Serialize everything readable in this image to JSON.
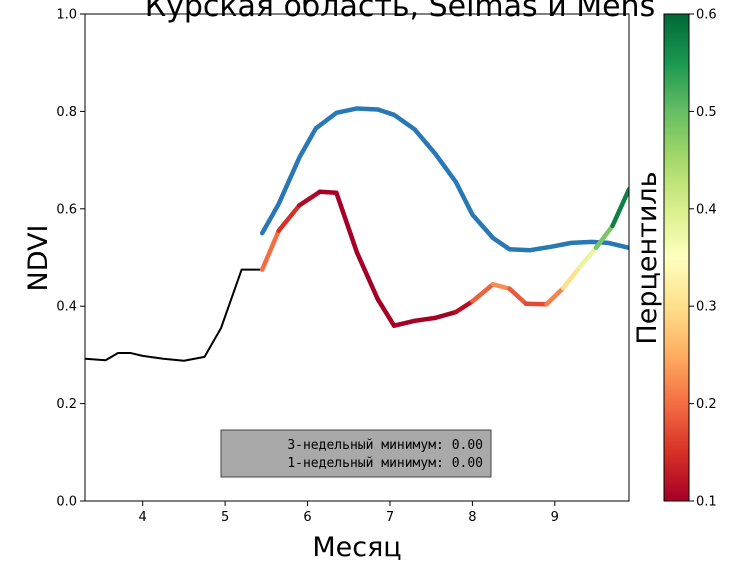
{
  "chart_data": {
    "type": "line",
    "title": "Курская область, Seimas и Mens",
    "xlabel": "Месяц",
    "ylabel": "NDVI",
    "xlim": [
      3.3,
      9.9
    ],
    "ylim": [
      0.0,
      1.0
    ],
    "xticks": [
      "4",
      "5",
      "6",
      "7",
      "8",
      "9"
    ],
    "yticks": [
      "0.0",
      "0.2",
      "0.4",
      "0.6",
      "0.8",
      "1.0"
    ],
    "grid": false,
    "series": [
      {
        "style": "history",
        "color": "#000000",
        "x": [
          3.3,
          3.55,
          3.7,
          3.85,
          4.0,
          4.25,
          4.5,
          4.75,
          4.95,
          5.2,
          5.45
        ],
        "y": [
          0.292,
          0.289,
          0.304,
          0.304,
          0.298,
          0.292,
          0.288,
          0.296,
          0.355,
          0.475,
          0.475
        ]
      },
      {
        "style": "baseline",
        "color": "#2878b5",
        "x": [
          5.45,
          5.65,
          5.9,
          6.1,
          6.35,
          6.6,
          6.85,
          7.05,
          7.3,
          7.55,
          7.8,
          8.0,
          8.25,
          8.45,
          8.7,
          8.95,
          9.2,
          9.45,
          9.65,
          9.9
        ],
        "y": [
          0.55,
          0.61,
          0.705,
          0.765,
          0.797,
          0.806,
          0.804,
          0.793,
          0.763,
          0.713,
          0.655,
          0.588,
          0.54,
          0.517,
          0.515,
          0.522,
          0.53,
          0.532,
          0.53,
          0.52
        ]
      },
      {
        "style": "current",
        "colored_by": "percentile",
        "x": [
          5.45,
          5.65,
          5.9,
          6.15,
          6.35,
          6.6,
          6.85,
          7.05,
          7.3,
          7.55,
          7.8,
          8.0,
          8.25,
          8.45,
          8.65,
          8.9,
          9.1,
          9.3,
          9.5,
          9.7,
          9.9
        ],
        "y": [
          0.475,
          0.555,
          0.607,
          0.635,
          0.633,
          0.51,
          0.415,
          0.36,
          0.37,
          0.376,
          0.388,
          0.41,
          0.445,
          0.436,
          0.405,
          0.404,
          0.437,
          0.48,
          0.52,
          0.565,
          0.64
        ],
        "percentile": [
          0.22,
          0.18,
          0.12,
          0.1,
          0.1,
          0.1,
          0.1,
          0.1,
          0.1,
          0.1,
          0.1,
          0.13,
          0.25,
          0.2,
          0.17,
          0.17,
          0.26,
          0.34,
          0.42,
          0.55,
          0.6
        ]
      }
    ],
    "annotation": [
      "3-недельный минимум: 0.00",
      "1-недельный минимум: 0.00"
    ],
    "colorbar": {
      "label": "Перцентиль",
      "range": [
        0.1,
        0.6
      ],
      "ticks": [
        "0.1",
        "0.2",
        "0.3",
        "0.4",
        "0.5",
        "0.6"
      ],
      "colormap": [
        "#a50026",
        "#d73027",
        "#f46d43",
        "#fdae61",
        "#fee08b",
        "#ffffbf",
        "#d9ef8b",
        "#a6d96a",
        "#66bd63",
        "#1a9850",
        "#006837"
      ]
    }
  }
}
